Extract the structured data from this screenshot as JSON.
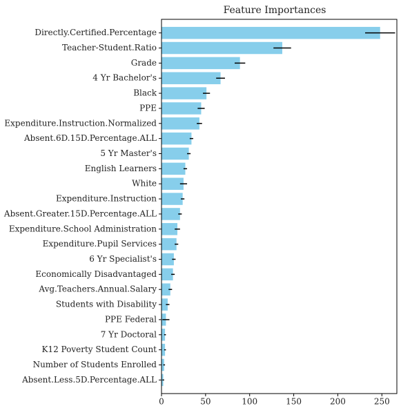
{
  "chart_data": {
    "type": "barh",
    "title": "Feature Importances",
    "categories": [
      "Directly.Certified.Percentage",
      "Teacher-Student.Ratio",
      "Grade",
      "4 Yr Bachelor's",
      "Black",
      "PPE",
      "Expenditure.Instruction.Normalized",
      "Absent.6D.15D.Percentage.ALL",
      "5 Yr Master's",
      "English Learners",
      "White",
      "Expenditure.Instruction",
      "Absent.Greater.15D.Percentage.ALL",
      "Expenditure.School Administration",
      "Expenditure.Pupil Services",
      "6 Yr Specialist's",
      "Economically Disadvantaged",
      "Avg.Teachers.Annual.Salary",
      "Students with Disability",
      "PPE Federal",
      "7 Yr Doctoral",
      "K12 Poverty Student Count",
      "Number of Students Enrolled",
      "Absent.Less.5D.Percentage.ALL"
    ],
    "values": [
      248,
      137,
      89,
      67,
      51,
      45,
      43,
      34,
      31,
      27,
      25,
      24,
      21,
      18,
      17,
      14,
      13,
      10,
      7,
      5,
      4,
      4,
      3,
      2
    ],
    "errors": [
      17,
      10,
      6,
      5,
      4,
      4,
      3,
      2,
      2,
      2,
      4,
      2,
      2,
      3,
      2,
      2,
      2,
      2,
      2,
      4,
      1,
      1,
      1,
      1
    ],
    "color": "#87ceeb",
    "error_color": "#000000",
    "xlim": [
      0,
      267
    ],
    "xticks": [
      0,
      50,
      100,
      150,
      200,
      250
    ]
  }
}
